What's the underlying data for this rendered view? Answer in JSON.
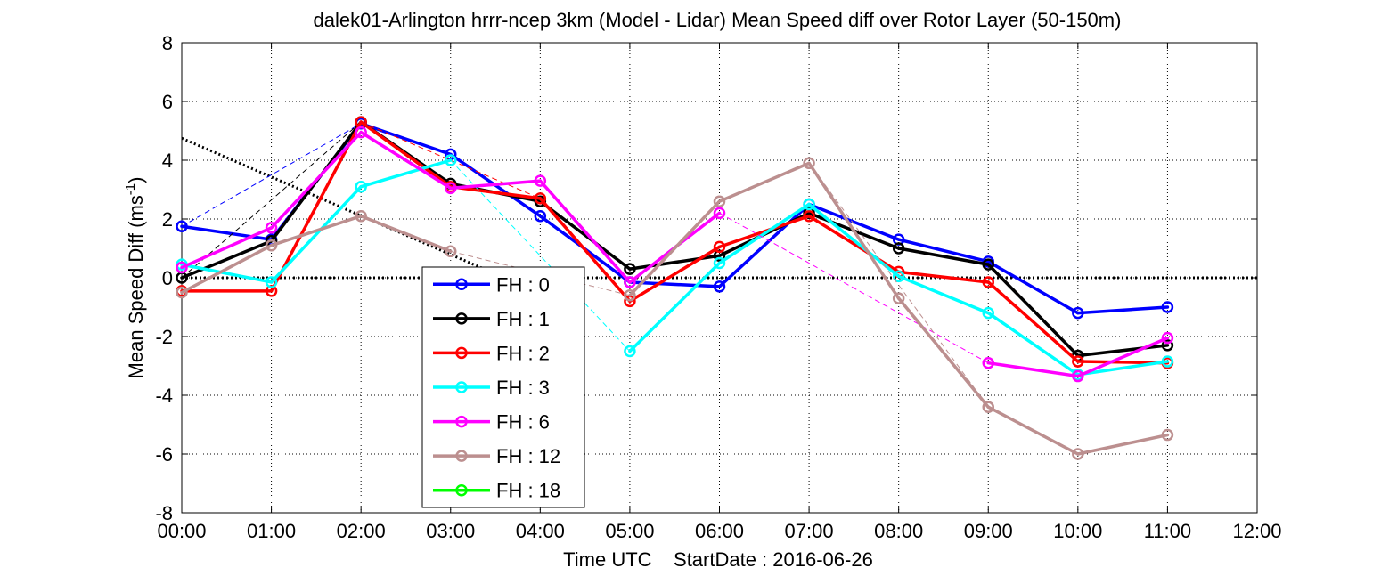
{
  "chart_data": {
    "type": "line",
    "title": "dalek01-Arlington hrrr-ncep 3km (Model - Lidar) Mean Speed diff over Rotor Layer (50-150m)",
    "xlabel": "Time UTC    StartDate : 2016-06-26",
    "ylabel_main": "Mean Speed Diff (ms",
    "ylabel_sup": "-1",
    "ylabel_close": ")",
    "x_ticks": [
      "00:00",
      "01:00",
      "02:00",
      "03:00",
      "04:00",
      "05:00",
      "06:00",
      "07:00",
      "08:00",
      "09:00",
      "10:00",
      "11:00",
      "12:00"
    ],
    "y_ticks": [
      "-8",
      "-6",
      "-4",
      "-2",
      "0",
      "2",
      "4",
      "6",
      "8"
    ],
    "xlim": [
      0,
      12
    ],
    "ylim": [
      -8,
      8
    ],
    "grid": true,
    "legend_position": "lower-left-center",
    "zero_line": true,
    "trend_line": {
      "x": [
        0,
        3.6
      ],
      "y": [
        4.75,
        0
      ]
    },
    "series": [
      {
        "name": "FH : 0",
        "color": "#0000ff",
        "x": [
          0,
          1,
          2,
          3,
          4,
          5,
          6,
          7,
          8,
          9,
          10,
          11
        ],
        "values": [
          1.75,
          1.3,
          5.25,
          4.2,
          2.1,
          -0.15,
          -0.3,
          2.5,
          1.3,
          0.55,
          -1.2,
          -1.0
        ],
        "dashed_connectors": [
          [
            0,
            2
          ]
        ]
      },
      {
        "name": "FH : 1",
        "color": "#000000",
        "x": [
          0,
          1,
          2,
          3,
          4,
          5,
          6,
          7,
          8,
          9,
          10,
          11
        ],
        "values": [
          0.0,
          1.25,
          5.3,
          3.2,
          2.6,
          0.3,
          0.75,
          2.2,
          1.0,
          0.45,
          -2.65,
          -2.3
        ],
        "dashed_connectors": [
          [
            0,
            2
          ]
        ]
      },
      {
        "name": "FH : 2",
        "color": "#ff0000",
        "x": [
          0,
          1,
          2,
          3,
          4,
          5,
          6,
          7,
          8,
          9,
          10,
          11
        ],
        "values": [
          -0.45,
          -0.45,
          5.3,
          3.1,
          2.7,
          -0.8,
          1.05,
          2.1,
          0.2,
          -0.15,
          -2.85,
          -2.9
        ],
        "dashed_connectors": [
          [
            2,
            4
          ]
        ]
      },
      {
        "name": "FH : 3",
        "color": "#00ffff",
        "x": [
          0,
          1,
          2,
          3,
          4,
          5,
          6,
          7,
          8,
          9,
          10,
          11
        ],
        "values": [
          0.45,
          -0.15,
          3.1,
          4.0,
          null,
          -2.5,
          0.5,
          2.5,
          0.05,
          -1.2,
          -3.3,
          -2.85
        ],
        "dashed_connectors": [
          [
            3,
            5
          ]
        ]
      },
      {
        "name": "FH : 6",
        "color": "#ff00ff",
        "x": [
          0,
          1,
          2,
          3,
          4,
          5,
          6,
          7,
          8,
          9,
          10,
          11
        ],
        "values": [
          0.35,
          1.7,
          4.95,
          3.05,
          3.3,
          -0.15,
          2.2,
          null,
          null,
          -2.9,
          -3.35,
          -2.05
        ],
        "dashed_connectors": [
          [
            6,
            9
          ]
        ]
      },
      {
        "name": "FH : 12",
        "color": "#bc8f8f",
        "x": [
          0,
          1,
          2,
          3,
          4,
          5,
          6,
          7,
          8,
          9,
          10,
          11
        ],
        "values": [
          -0.5,
          1.1,
          2.1,
          0.9,
          null,
          -0.6,
          2.6,
          3.9,
          -0.7,
          -4.4,
          -6.0,
          -5.35
        ],
        "dashed_connectors": [
          [
            3,
            5
          ],
          [
            7,
            9
          ]
        ]
      },
      {
        "name": "FH : 18",
        "color": "#00ff00",
        "x": [],
        "values": [],
        "dashed_connectors": []
      }
    ]
  }
}
